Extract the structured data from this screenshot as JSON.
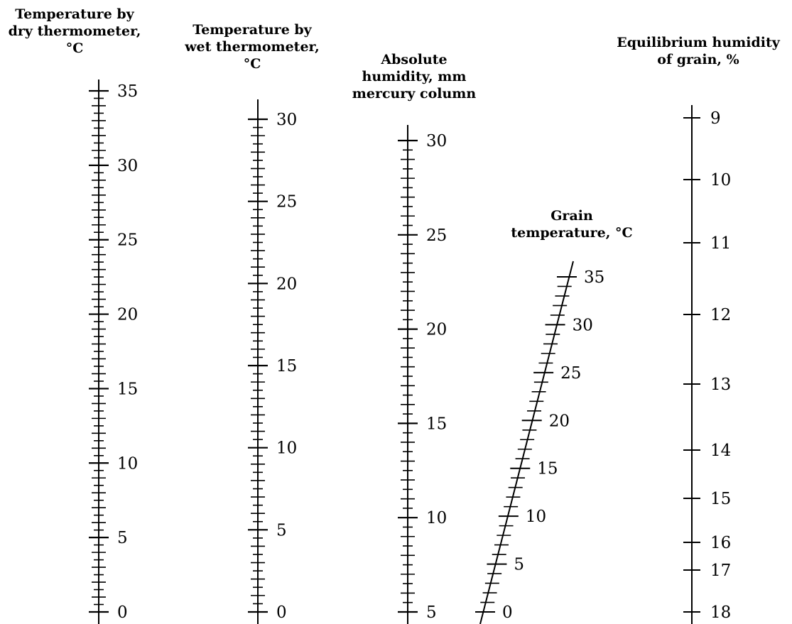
{
  "scales": [
    {
      "id": "dry",
      "title_lines": [
        "Temperature by",
        "dry thermometer,",
        "°C"
      ],
      "min": 0,
      "max": 35,
      "minor_step": 0.5,
      "major_step": 5,
      "labels": [
        "0",
        "5",
        "10",
        "15",
        "20",
        "25",
        "30",
        "35"
      ]
    },
    {
      "id": "wet",
      "title_lines": [
        "Temperature by",
        "wet thermometer,",
        "°C"
      ],
      "min": 0,
      "max": 30,
      "minor_step": 0.5,
      "major_step": 5,
      "labels": [
        "0",
        "5",
        "10",
        "15",
        "20",
        "25",
        "30"
      ]
    },
    {
      "id": "abs",
      "title_lines": [
        "Absolute",
        "humidity, mm",
        "mercury column"
      ],
      "min": 5,
      "max": 30,
      "minor_step": 0.5,
      "major_step": 5,
      "labels": [
        "5",
        "10",
        "15",
        "20",
        "25",
        "30"
      ]
    },
    {
      "id": "grain",
      "title_lines": [
        "Grain",
        "temperature, °C"
      ],
      "min": 0,
      "max": 35,
      "minor_step": 1,
      "major_step": 5,
      "labels": [
        "0",
        "5",
        "10",
        "15",
        "20",
        "25",
        "30",
        "35"
      ]
    },
    {
      "id": "eq",
      "title_lines": [
        "Equilibrium humidity",
        "of grain, %"
      ],
      "min": 9,
      "max": 18,
      "major_step": 1,
      "labels": [
        "9",
        "10",
        "11",
        "12",
        "13",
        "14",
        "15",
        "16",
        "17",
        "18"
      ]
    }
  ]
}
